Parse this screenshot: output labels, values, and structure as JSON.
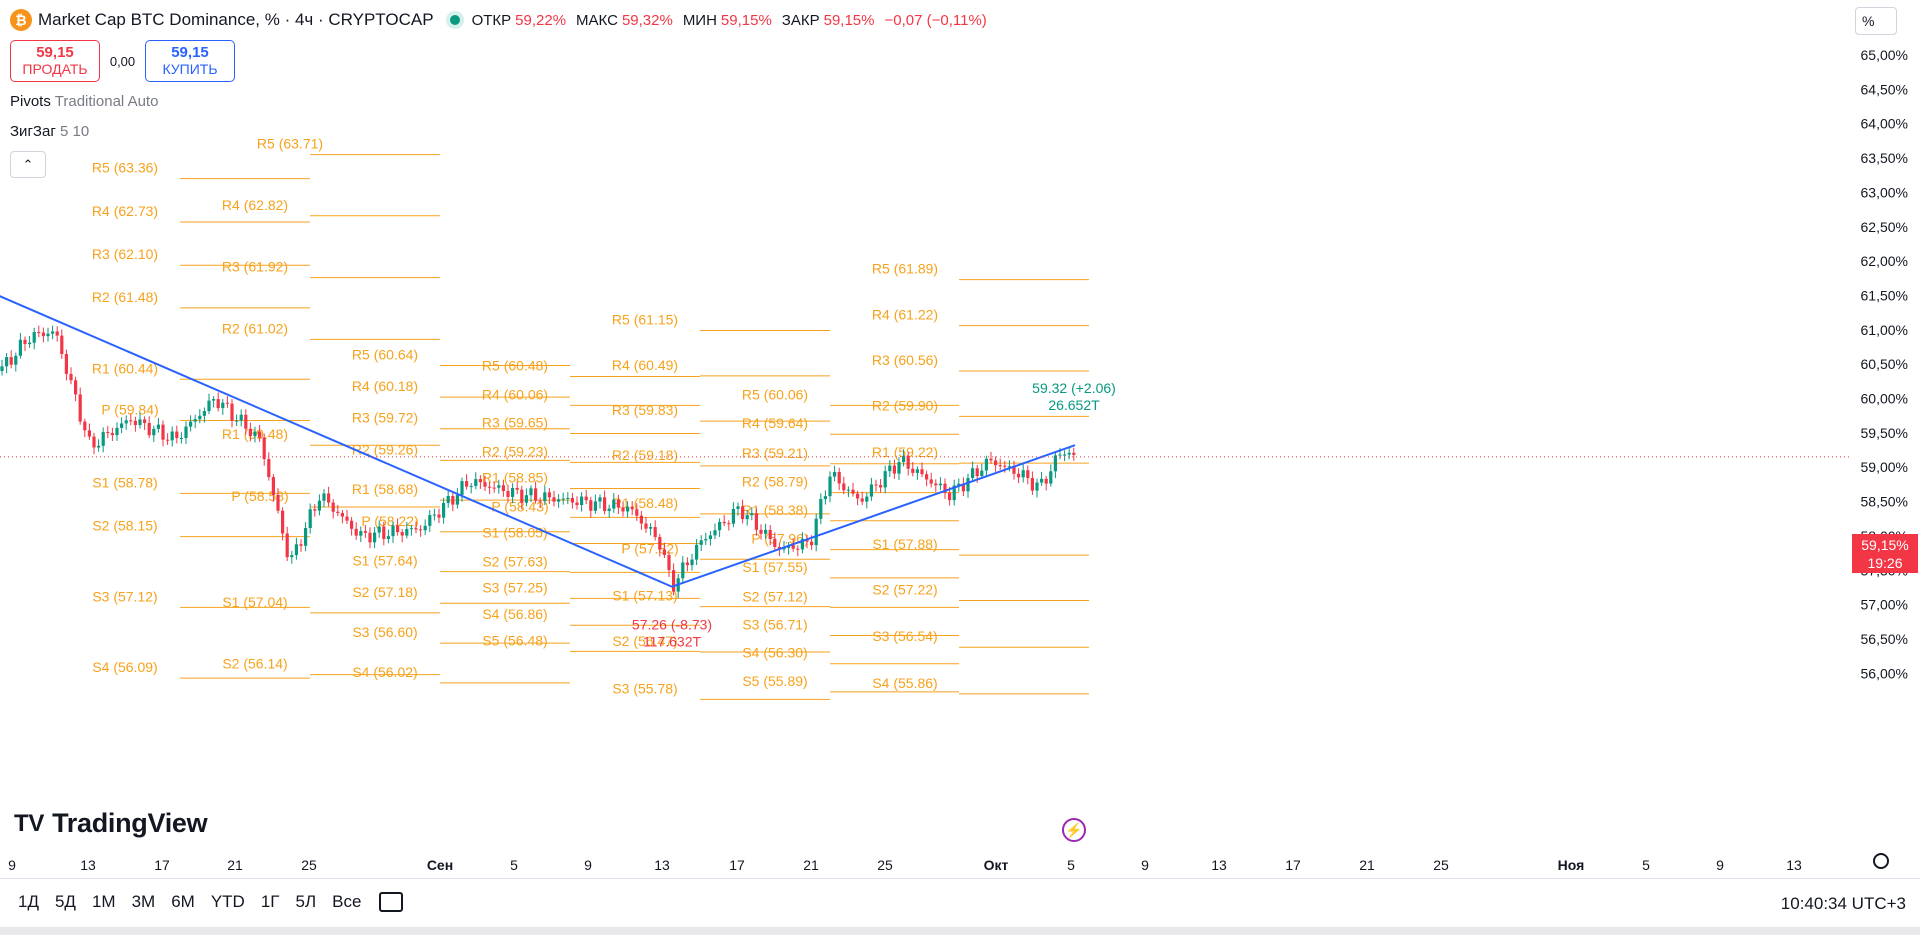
{
  "header": {
    "coin_symbol": "₿",
    "title": "Market Cap BTC Dominance, % · 4ч · CRYPTOCAP",
    "ohlc": [
      {
        "label": "ОТКР",
        "value": "59,22%"
      },
      {
        "label": "МАКС",
        "value": "59,32%"
      },
      {
        "label": "МИН",
        "value": "59,15%"
      },
      {
        "label": "ЗАКР",
        "value": "59,15%"
      }
    ],
    "change": "−0,07 (−0,11%)"
  },
  "trade": {
    "sell_price": "59,15",
    "sell_label": "ПРОДАТЬ",
    "spread": "0,00",
    "buy_price": "59,15",
    "buy_label": "КУПИТЬ"
  },
  "indicators": [
    {
      "name": "Pivots",
      "params": "Traditional Auto"
    },
    {
      "name": "ЗигЗаг",
      "params": "5 10"
    }
  ],
  "collapse_icon": "chevron-up-icon",
  "price_scale": {
    "unit": "%",
    "last_price": "59,15%",
    "countdown": "19:26"
  },
  "brand": {
    "logo_mark": "TV",
    "name": "TradingView"
  },
  "toolbar": {
    "ranges": [
      "1Д",
      "5Д",
      "1М",
      "3М",
      "6М",
      "YTD",
      "1Г",
      "5Л",
      "Все"
    ],
    "clock": "10:40:34 UTC+3"
  },
  "colors": {
    "pivot": "#f7a21b",
    "up": "#089981",
    "down": "#f23645",
    "zigzag": "#2962ff"
  },
  "chart_data": {
    "type": "candlestick",
    "y_ticks": [
      "65,00%",
      "64,50%",
      "64,00%",
      "63,50%",
      "63,00%",
      "62,50%",
      "62,00%",
      "61,50%",
      "61,00%",
      "60,50%",
      "60,00%",
      "59,50%",
      "59,00%",
      "58,50%",
      "58,00%",
      "57,50%",
      "57,00%",
      "56,50%",
      "56,00%"
    ],
    "y_values": [
      65.0,
      64.5,
      64.0,
      63.5,
      63.0,
      62.5,
      62.0,
      61.5,
      61.0,
      60.5,
      60.0,
      59.5,
      59.0,
      58.5,
      58.0,
      57.5,
      57.0,
      56.5,
      56.0
    ],
    "x_ticks": [
      "9",
      "13",
      "17",
      "21",
      "25",
      "Сен",
      "5",
      "9",
      "13",
      "17",
      "21",
      "25",
      "Окт",
      "5",
      "9",
      "13",
      "17",
      "21",
      "25",
      "Ноя",
      "5",
      "9",
      "13"
    ],
    "pivot_labels": [
      {
        "text": "R5 (63.71)",
        "y": 63.71
      },
      {
        "text": "R5 (63.36)",
        "y": 63.36
      },
      {
        "text": "R4 (62.82)",
        "y": 62.82
      },
      {
        "text": "R4 (62.73)",
        "y": 62.73
      },
      {
        "text": "R3 (62.10)",
        "y": 62.1
      },
      {
        "text": "R3 (61.92)",
        "y": 61.92
      },
      {
        "text": "R5 (61.89)",
        "y": 61.89
      },
      {
        "text": "R2 (61.48)",
        "y": 61.48
      },
      {
        "text": "R4 (61.22)",
        "y": 61.22
      },
      {
        "text": "R5 (61.15)",
        "y": 61.15
      },
      {
        "text": "R2 (61.02)",
        "y": 61.02
      },
      {
        "text": "R5 (60.64)",
        "y": 60.64
      },
      {
        "text": "R3 (60.56)",
        "y": 60.56
      },
      {
        "text": "R4 (60.49)",
        "y": 60.49
      },
      {
        "text": "R5 (60.48)",
        "y": 60.48
      },
      {
        "text": "R1 (60.44)",
        "y": 60.44
      },
      {
        "text": "R4 (60.18)",
        "y": 60.18
      },
      {
        "text": "R4 (60.06)",
        "y": 60.06
      },
      {
        "text": "R5 (60.06)",
        "y": 60.06
      },
      {
        "text": "R2 (59.90)",
        "y": 59.9
      },
      {
        "text": "P (59.84)",
        "y": 59.84
      },
      {
        "text": "R3 (59.83)",
        "y": 59.83
      },
      {
        "text": "R3 (59.72)",
        "y": 59.72
      },
      {
        "text": "R3 (59.65)",
        "y": 59.65
      },
      {
        "text": "R4 (59.64)",
        "y": 59.64
      },
      {
        "text": "R1 (59.48)",
        "y": 59.48
      },
      {
        "text": "R2 (59.26)",
        "y": 59.26
      },
      {
        "text": "R2 (59.23)",
        "y": 59.23
      },
      {
        "text": "R1 (59.22)",
        "y": 59.22
      },
      {
        "text": "R3 (59.21)",
        "y": 59.21
      },
      {
        "text": "R2 (59.18)",
        "y": 59.18
      },
      {
        "text": "R1 (58.85)",
        "y": 58.85
      },
      {
        "text": "R2 (58.79)",
        "y": 58.79
      },
      {
        "text": "S1 (58.78)",
        "y": 58.78
      },
      {
        "text": "R1 (58.68)",
        "y": 58.68
      },
      {
        "text": "P (58.58)",
        "y": 58.58
      },
      {
        "text": "R1 (58.48)",
        "y": 58.48
      },
      {
        "text": "P (58.43)",
        "y": 58.43
      },
      {
        "text": "R1 (58.38)",
        "y": 58.38
      },
      {
        "text": "P (58.22)",
        "y": 58.22
      },
      {
        "text": "S2 (58.15)",
        "y": 58.15
      },
      {
        "text": "S1 (58.05)",
        "y": 58.05
      },
      {
        "text": "P (57.96)",
        "y": 57.96
      },
      {
        "text": "S1 (57.88)",
        "y": 57.88
      },
      {
        "text": "P (57.82)",
        "y": 57.82
      },
      {
        "text": "S1 (57.64)",
        "y": 57.64
      },
      {
        "text": "S2 (57.63)",
        "y": 57.63
      },
      {
        "text": "S1 (57.55)",
        "y": 57.55
      },
      {
        "text": "S3 (57.25)",
        "y": 57.25
      },
      {
        "text": "S2 (57.22)",
        "y": 57.22
      },
      {
        "text": "S2 (57.18)",
        "y": 57.18
      },
      {
        "text": "S1 (57.13)",
        "y": 57.13
      },
      {
        "text": "S3 (57.12)",
        "y": 57.12
      },
      {
        "text": "S2 (57.12)",
        "y": 57.12
      },
      {
        "text": "S1 (57.04)",
        "y": 57.04
      },
      {
        "text": "S4 (56.86)",
        "y": 56.86
      },
      {
        "text": "S3 (56.71)",
        "y": 56.71
      },
      {
        "text": "S3 (56.60)",
        "y": 56.6
      },
      {
        "text": "S3 (56.54)",
        "y": 56.54
      },
      {
        "text": "S5 (56.48)",
        "y": 56.48
      },
      {
        "text": "S2 (56.47)",
        "y": 56.47
      },
      {
        "text": "S4 (56.30)",
        "y": 56.3
      },
      {
        "text": "S2 (56.14)",
        "y": 56.14
      },
      {
        "text": "S4 (56.09)",
        "y": 56.09
      },
      {
        "text": "S4 (56.02)",
        "y": 56.02
      },
      {
        "text": "S5 (55.89)",
        "y": 55.89
      },
      {
        "text": "S4 (55.86)",
        "y": 55.86
      },
      {
        "text": "S3 (55.78)",
        "y": 55.78
      }
    ],
    "zigzag_points": [
      {
        "date": "10",
        "y": 60.98
      },
      {
        "date": "13 Сен",
        "y": 57.26
      },
      {
        "date": "5 Окт",
        "y": 59.32
      }
    ],
    "zigzag_labels": [
      {
        "text": "59.32 (+2.06)",
        "volume": "26.652T",
        "y": 59.32
      },
      {
        "text": "57.26 (-8.73)",
        "volume": "117.632T",
        "y": 57.26
      }
    ]
  }
}
